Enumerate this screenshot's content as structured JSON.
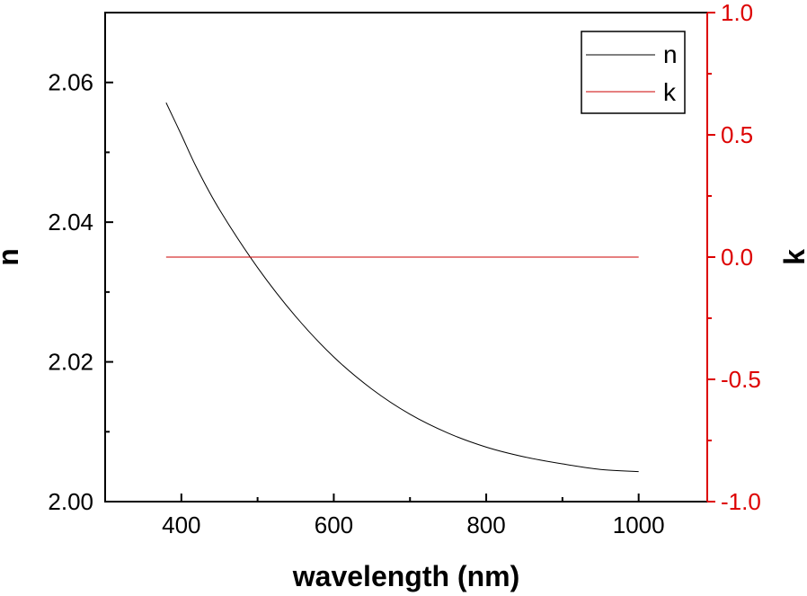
{
  "chart_data": {
    "type": "line",
    "xlabel": "wavelength (nm)",
    "ylabel": "n",
    "ylabel_right": "k",
    "xlim": [
      300,
      1090
    ],
    "ylim": [
      2.0,
      2.07
    ],
    "ylim_right": [
      -1.0,
      1.0
    ],
    "x_ticks": [
      "400",
      "600",
      "800",
      "1000"
    ],
    "y_ticks": [
      "2.00",
      "2.02",
      "2.04",
      "2.06"
    ],
    "y_ticks_right": [
      "-1.0",
      "-0.5",
      "0.0",
      "0.5",
      "1.0"
    ],
    "grid": false,
    "legend": "top-right",
    "series": [
      {
        "name": "n",
        "axis": "left",
        "color": "#000000",
        "x": [
          380,
          400,
          420,
          450,
          500,
          550,
          600,
          650,
          700,
          750,
          800,
          850,
          900,
          950,
          1000
        ],
        "values": [
          2.0571,
          2.0525,
          2.0478,
          2.0418,
          2.0335,
          2.0265,
          2.0207,
          2.0161,
          2.0125,
          2.0098,
          2.0078,
          2.0064,
          2.0054,
          2.0046,
          2.0043
        ]
      },
      {
        "name": "k",
        "axis": "right",
        "color": "#cc0000",
        "x": [
          380,
          1000
        ],
        "values": [
          0.0,
          0.0
        ]
      }
    ],
    "colors": {
      "axis": "#000000",
      "right_axis": "#dd0000"
    }
  }
}
